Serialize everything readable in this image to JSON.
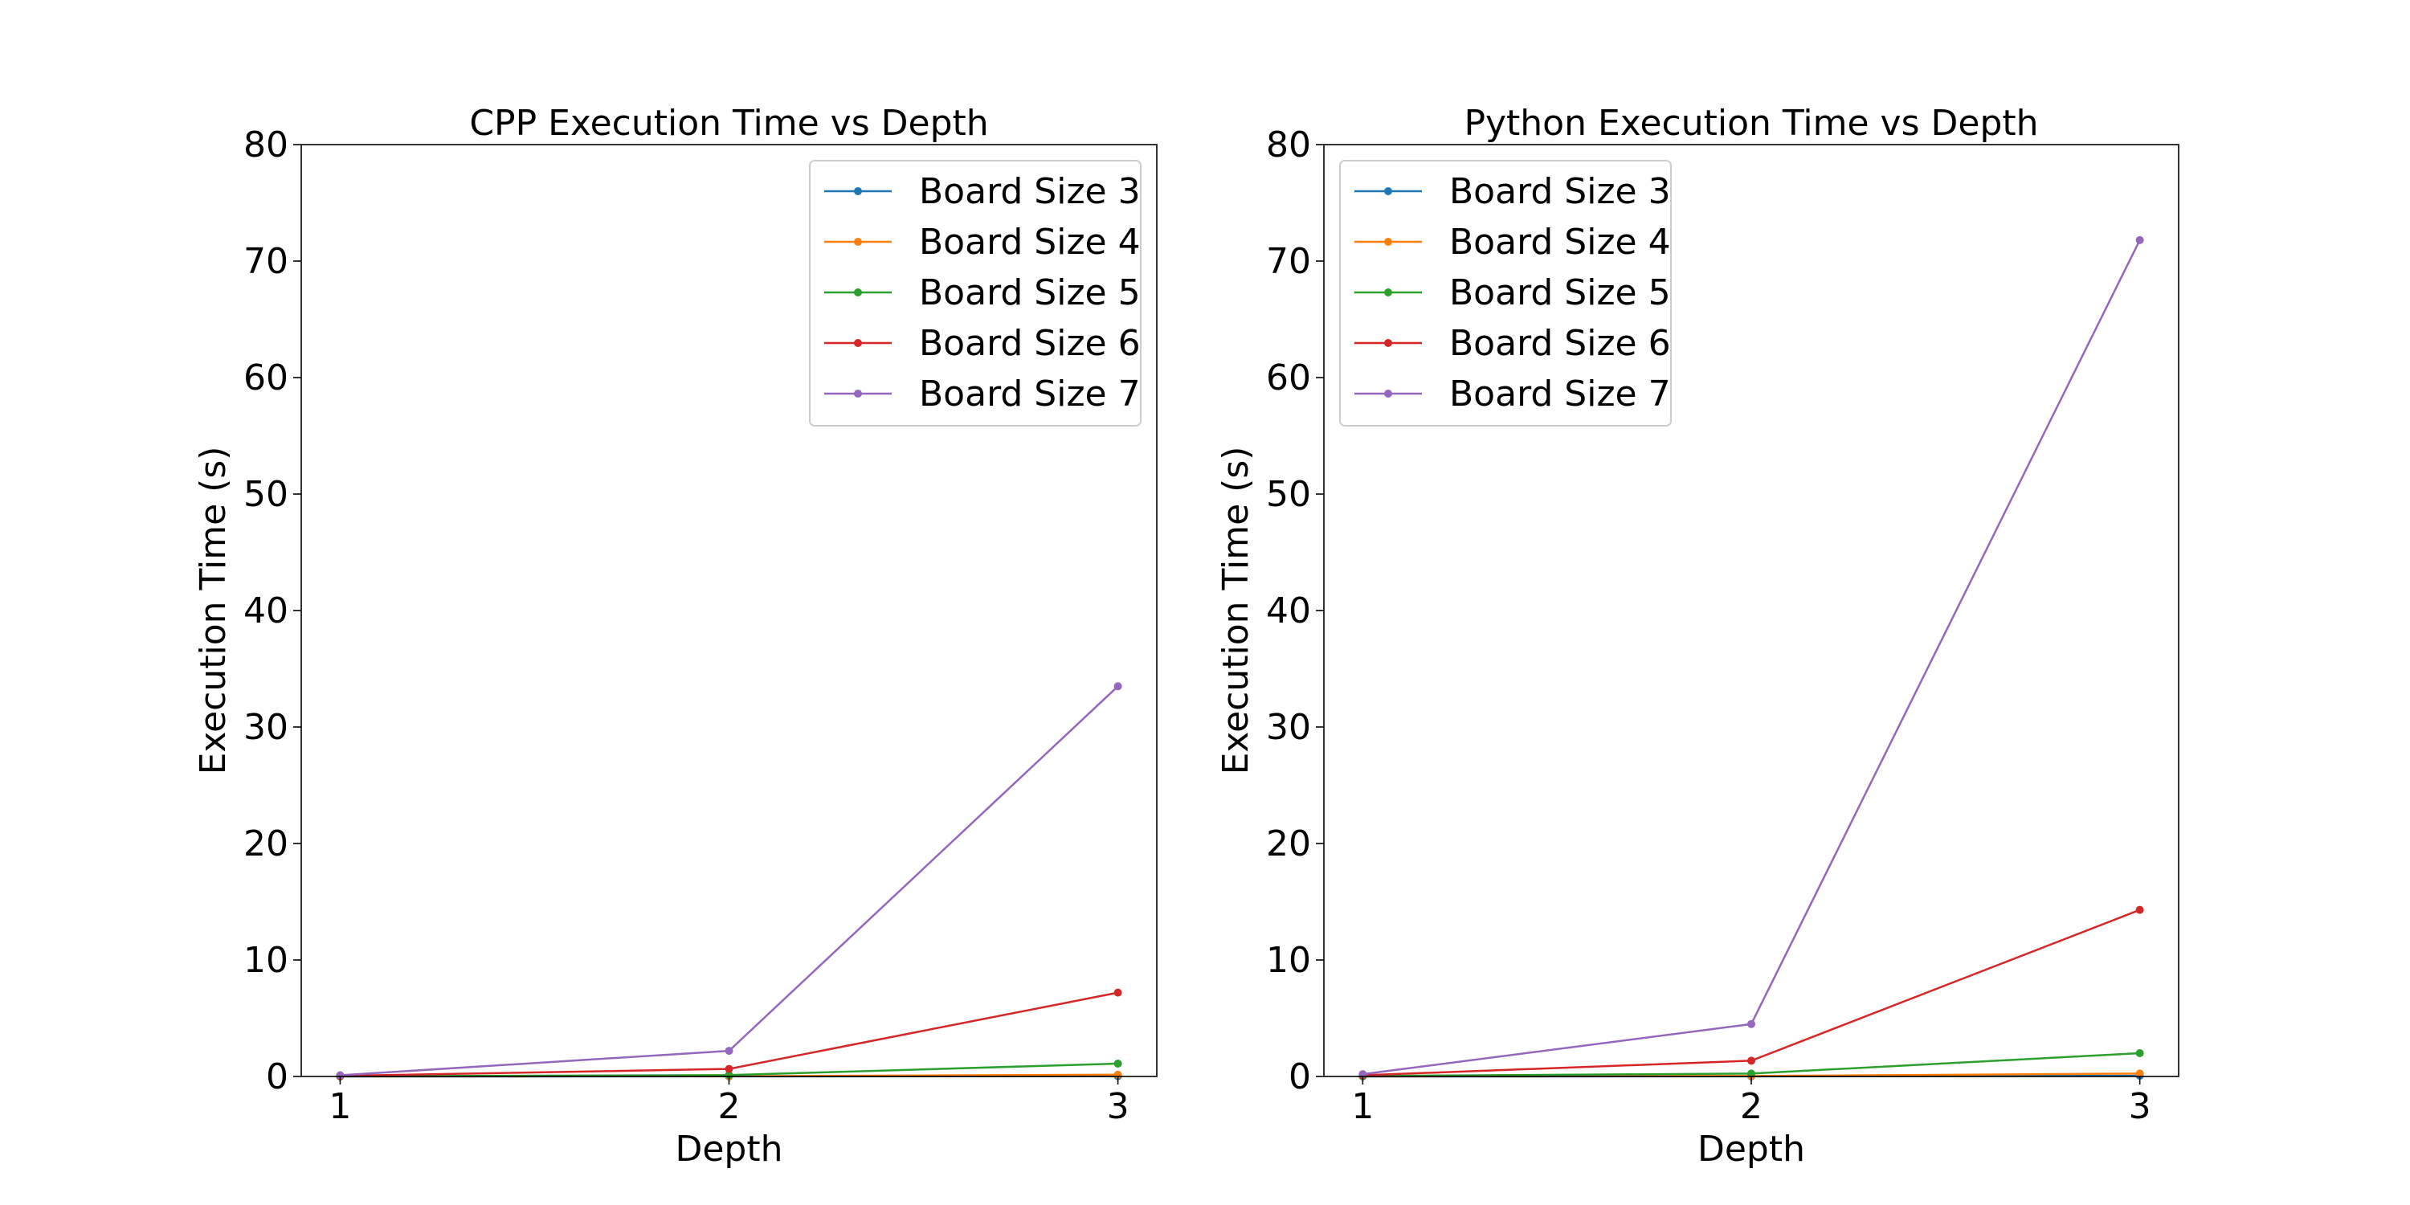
{
  "chart_data": [
    {
      "type": "line",
      "title": "CPP Execution Time vs Depth",
      "xlabel": "Depth",
      "ylabel": "Execution Time (s)",
      "x": [
        1,
        2,
        3
      ],
      "xticks": [
        "1",
        "2",
        "3"
      ],
      "xlim": [
        0.9,
        3.1
      ],
      "ylim": [
        0,
        80
      ],
      "yticks": [
        "0",
        "10",
        "20",
        "30",
        "40",
        "50",
        "60",
        "70",
        "80"
      ],
      "grid": false,
      "legend": "top-right",
      "series": [
        {
          "name": "Board Size 3",
          "color": "#1f77b4",
          "values": [
            0.001,
            0.005,
            0.03
          ]
        },
        {
          "name": "Board Size 4",
          "color": "#ff7f0e",
          "values": [
            0.005,
            0.02,
            0.15
          ]
        },
        {
          "name": "Board Size 5",
          "color": "#2ca02c",
          "values": [
            0.02,
            0.12,
            1.1
          ]
        },
        {
          "name": "Board Size 6",
          "color": "#d62728",
          "values": [
            0.05,
            0.65,
            7.2
          ]
        },
        {
          "name": "Board Size 7",
          "color": "#9467bd",
          "values": [
            0.1,
            2.2,
            33.5
          ]
        }
      ]
    },
    {
      "type": "line",
      "title": "Python Execution Time vs Depth",
      "xlabel": "Depth",
      "ylabel": "Execution Time (s)",
      "x": [
        1,
        2,
        3
      ],
      "xticks": [
        "1",
        "2",
        "3"
      ],
      "xlim": [
        0.9,
        3.1
      ],
      "ylim": [
        0,
        80
      ],
      "yticks": [
        "0",
        "10",
        "20",
        "30",
        "40",
        "50",
        "60",
        "70",
        "80"
      ],
      "grid": false,
      "legend": "top-left",
      "series": [
        {
          "name": "Board Size 3",
          "color": "#1f77b4",
          "values": [
            0.002,
            0.01,
            0.06
          ]
        },
        {
          "name": "Board Size 4",
          "color": "#ff7f0e",
          "values": [
            0.01,
            0.04,
            0.25
          ]
        },
        {
          "name": "Board Size 5",
          "color": "#2ca02c",
          "values": [
            0.04,
            0.25,
            2.0
          ]
        },
        {
          "name": "Board Size 6",
          "color": "#d62728",
          "values": [
            0.1,
            1.35,
            14.3
          ]
        },
        {
          "name": "Board Size 7",
          "color": "#9467bd",
          "values": [
            0.2,
            4.5,
            71.8
          ]
        }
      ]
    }
  ]
}
